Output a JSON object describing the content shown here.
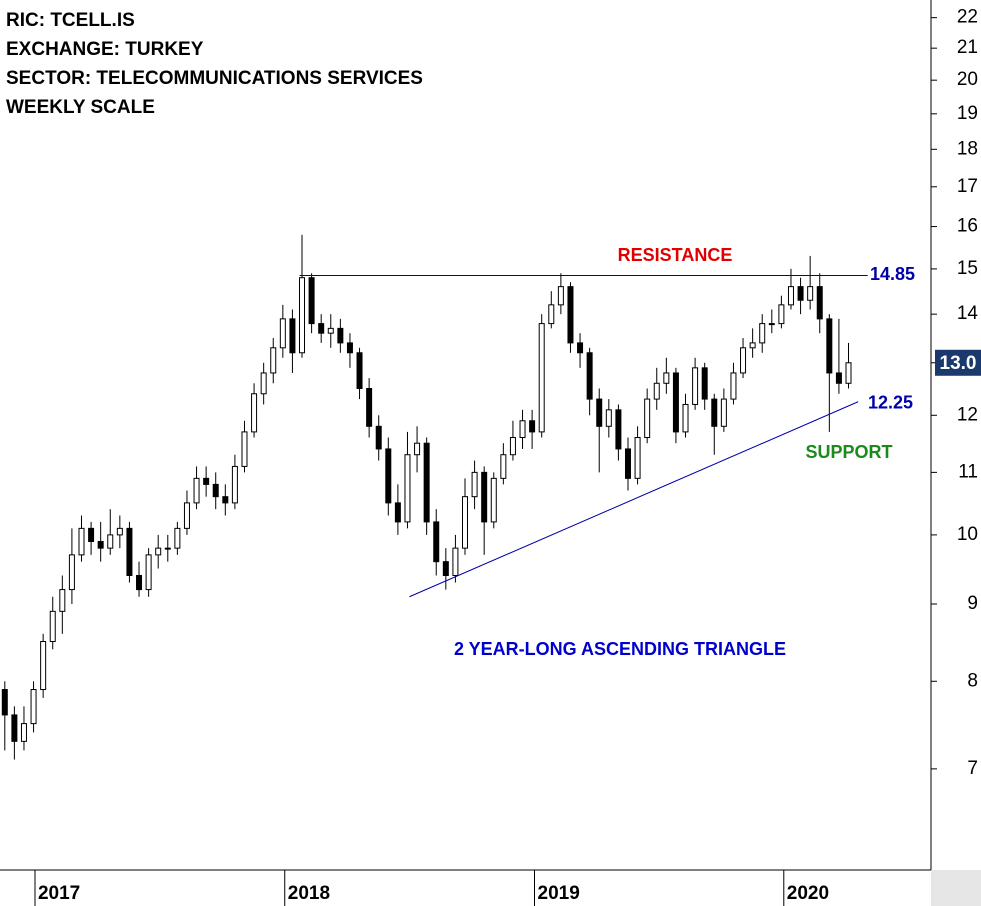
{
  "chart_data": {
    "type": "candlestick",
    "header": [
      "RIC: TCELL.IS",
      "EXCHANGE: TURKEY",
      "SECTOR: TELECOMMUNICATIONS SERVICES",
      "WEEKLY SCALE"
    ],
    "log_scale": true,
    "ylim": [
      6.0,
      22.6
    ],
    "yticks": [
      7,
      8,
      9,
      10,
      11,
      12,
      13,
      14,
      15,
      16,
      17,
      18,
      19,
      20,
      21,
      22
    ],
    "xlim": [
      0,
      194
    ],
    "xticks": [
      {
        "value": 7.3,
        "label": "2017"
      },
      {
        "value": 59.4,
        "label": "2018"
      },
      {
        "value": 111.5,
        "label": "2019"
      },
      {
        "value": 163.5,
        "label": "2020"
      }
    ],
    "up_color": "#ffffff",
    "down_color": "#000000",
    "x": [
      1,
      3,
      5,
      7,
      9,
      11,
      13,
      15,
      17,
      19,
      21,
      23,
      25,
      27,
      29,
      31,
      33,
      35,
      37,
      39,
      41,
      43,
      45,
      47,
      49,
      51,
      53,
      55,
      57,
      59,
      61,
      63,
      65,
      67,
      69,
      71,
      73,
      75,
      77,
      79,
      81,
      83,
      85,
      87,
      89,
      91,
      93,
      95,
      97,
      99,
      101,
      103,
      105,
      107,
      109,
      111,
      113,
      115,
      117,
      119,
      121,
      123,
      125,
      127,
      129,
      131,
      133,
      135,
      137,
      139,
      141,
      143,
      145,
      147,
      149,
      151,
      153,
      155,
      157,
      159,
      161,
      163,
      165,
      167,
      169,
      171,
      173,
      175,
      177
    ],
    "open": [
      7.9,
      7.6,
      7.3,
      7.5,
      7.9,
      8.5,
      8.9,
      9.2,
      9.7,
      10.1,
      9.9,
      9.8,
      10.0,
      10.1,
      9.4,
      9.2,
      9.7,
      9.8,
      9.8,
      10.1,
      10.5,
      10.9,
      10.8,
      10.6,
      10.5,
      11.1,
      11.7,
      12.4,
      12.8,
      13.3,
      13.9,
      13.2,
      14.8,
      13.8,
      13.6,
      13.7,
      13.4,
      13.2,
      12.5,
      11.8,
      11.4,
      10.5,
      10.2,
      11.3,
      11.5,
      10.2,
      9.6,
      9.4,
      9.8,
      10.6,
      11.0,
      10.2,
      10.9,
      11.3,
      11.6,
      11.9,
      11.7,
      13.8,
      14.2,
      14.6,
      13.4,
      13.2,
      12.3,
      11.8,
      12.1,
      11.4,
      10.9,
      11.6,
      12.3,
      12.6,
      12.8,
      11.7,
      12.2,
      12.9,
      12.3,
      11.8,
      12.3,
      12.8,
      13.3,
      13.4,
      13.8,
      13.8,
      14.2,
      14.6,
      14.3,
      14.6,
      13.9,
      12.8,
      12.6
    ],
    "high": [
      8.0,
      7.7,
      7.7,
      8.0,
      8.6,
      9.1,
      9.4,
      10.1,
      10.3,
      10.2,
      10.2,
      10.4,
      10.3,
      10.2,
      9.6,
      9.8,
      10.0,
      10.0,
      10.2,
      10.7,
      11.1,
      11.1,
      11.0,
      10.8,
      11.3,
      11.9,
      12.6,
      13.0,
      13.5,
      14.2,
      14.1,
      15.8,
      14.9,
      14.0,
      14.0,
      13.9,
      13.6,
      13.3,
      12.7,
      12.0,
      11.6,
      10.8,
      11.7,
      11.8,
      11.6,
      10.4,
      9.8,
      10.0,
      10.9,
      11.2,
      11.1,
      11.0,
      11.5,
      11.9,
      12.1,
      12.1,
      14.0,
      14.5,
      14.9,
      14.7,
      13.6,
      13.3,
      12.5,
      12.3,
      12.2,
      11.6,
      11.8,
      12.5,
      12.9,
      13.1,
      12.9,
      12.4,
      13.1,
      13.0,
      12.4,
      12.5,
      13.0,
      13.5,
      13.7,
      14.0,
      14.1,
      14.4,
      15.0,
      14.8,
      15.3,
      14.9,
      14.0,
      13.9,
      13.4
    ],
    "low": [
      7.2,
      7.1,
      7.2,
      7.4,
      7.8,
      8.4,
      8.6,
      9.0,
      9.6,
      9.7,
      9.6,
      9.7,
      9.8,
      9.3,
      9.1,
      9.1,
      9.5,
      9.6,
      9.7,
      10.0,
      10.4,
      10.6,
      10.4,
      10.3,
      10.4,
      11.0,
      11.6,
      12.2,
      12.6,
      13.1,
      12.8,
      13.1,
      13.6,
      13.4,
      13.3,
      13.2,
      12.9,
      12.3,
      11.6,
      11.2,
      10.3,
      10.0,
      10.1,
      11.0,
      10.0,
      9.4,
      9.2,
      9.3,
      9.7,
      10.4,
      9.7,
      10.1,
      10.8,
      11.2,
      11.4,
      11.4,
      11.6,
      13.7,
      14.0,
      13.2,
      12.9,
      12.0,
      11.0,
      11.6,
      11.2,
      10.7,
      10.8,
      11.5,
      12.1,
      12.4,
      11.5,
      11.6,
      12.1,
      12.1,
      11.3,
      11.7,
      12.2,
      12.7,
      13.1,
      13.2,
      13.6,
      13.7,
      14.1,
      14.0,
      14.1,
      13.6,
      11.7,
      12.4,
      12.5
    ],
    "close": [
      7.6,
      7.3,
      7.5,
      7.9,
      8.5,
      8.9,
      9.2,
      9.7,
      10.1,
      9.9,
      9.8,
      10.0,
      10.1,
      9.4,
      9.2,
      9.7,
      9.8,
      9.8,
      10.1,
      10.5,
      10.9,
      10.8,
      10.6,
      10.5,
      11.1,
      11.7,
      12.4,
      12.8,
      13.3,
      13.9,
      13.2,
      14.8,
      13.8,
      13.6,
      13.7,
      13.4,
      13.2,
      12.5,
      11.8,
      11.4,
      10.5,
      10.2,
      11.3,
      11.5,
      10.2,
      9.6,
      9.4,
      9.8,
      10.6,
      11.0,
      10.2,
      10.9,
      11.3,
      11.6,
      11.9,
      11.7,
      13.8,
      14.2,
      14.6,
      13.4,
      13.2,
      12.3,
      11.8,
      12.1,
      11.4,
      10.9,
      11.6,
      12.3,
      12.6,
      12.8,
      11.7,
      12.2,
      12.9,
      12.3,
      11.8,
      12.3,
      12.8,
      13.3,
      13.4,
      13.8,
      13.8,
      14.2,
      14.6,
      14.3,
      14.6,
      13.9,
      12.8,
      12.6,
      13.0
    ],
    "resistance": {
      "label": "RESISTANCE",
      "value": 14.85,
      "x": [
        62.5,
        181
      ],
      "color": "#0000aa",
      "label_color": "#e00000"
    },
    "support": {
      "label": "SUPPORT",
      "x": [
        85.4,
        179
      ],
      "y": [
        9.1,
        12.25
      ],
      "color": "#0000aa",
      "label_color": "#1a8a1a"
    },
    "annotation": {
      "text": "2 YEAR-LONG ASCENDING TRIANGLE",
      "color": "#0000cc"
    },
    "last_price": {
      "value": 13,
      "label": "13.0",
      "color": "#1a3a6e"
    }
  }
}
